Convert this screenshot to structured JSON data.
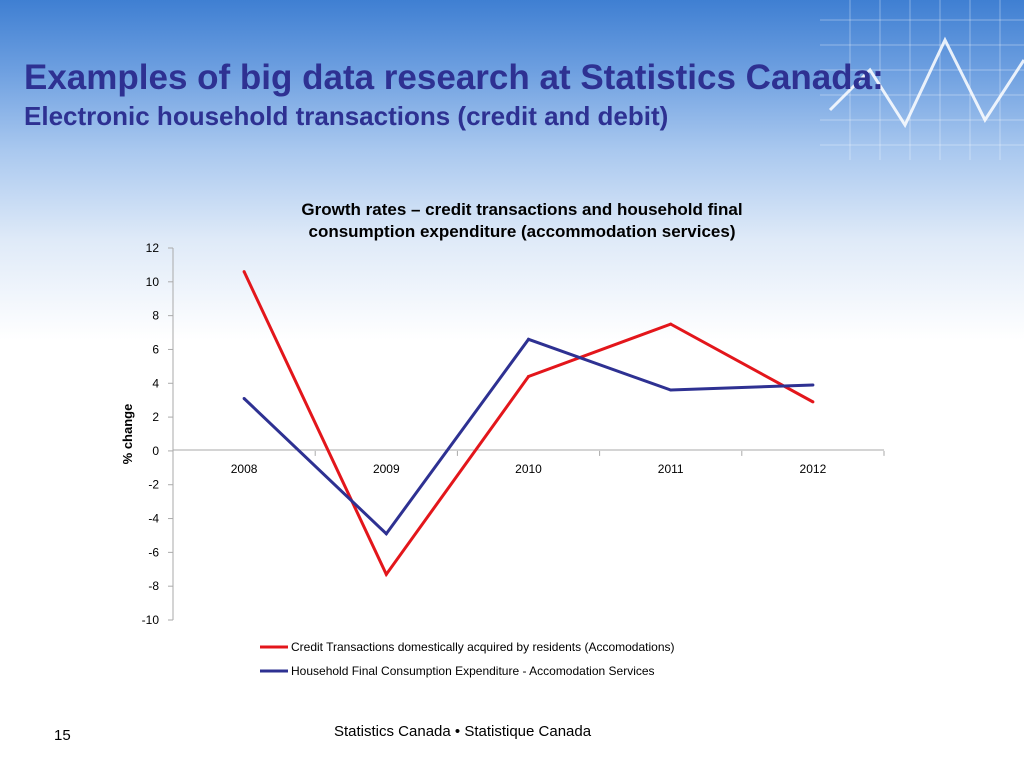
{
  "slide": {
    "title": "Examples of big data research at Statistics Canada:",
    "subtitle": "Electronic household transactions (credit and debit)",
    "page_number": "15",
    "footer": "Statistics Canada • Statistique Canada"
  },
  "colors": {
    "title": "#2e3192",
    "series_credit": "#e3161b",
    "series_household": "#2e3192"
  },
  "chart_data": {
    "type": "line",
    "title": "Growth rates – credit transactions and household final consumption expenditure (accommodation services)",
    "title_lines": [
      "Growth rates – credit transactions and household final",
      "consumption expenditure (accommodation services)"
    ],
    "xlabel": "",
    "ylabel": "% change",
    "x": [
      "2008",
      "2009",
      "2010",
      "2011",
      "2012"
    ],
    "ylim": [
      -10,
      12
    ],
    "yticks": [
      12,
      10,
      8,
      6,
      4,
      2,
      0,
      -2,
      -4,
      -6,
      -8,
      -10
    ],
    "grid": false,
    "legend_position": "bottom",
    "series": [
      {
        "name": "Credit Transactions domestically acquired by residents (Accomodations)",
        "color": "#e3161b",
        "values": [
          10.6,
          -7.3,
          4.4,
          7.5,
          2.9
        ]
      },
      {
        "name": "Household Final Consumption Expenditure - Accomodation Services",
        "color": "#2e3192",
        "values": [
          3.1,
          -4.9,
          6.6,
          3.6,
          3.9
        ]
      }
    ]
  }
}
